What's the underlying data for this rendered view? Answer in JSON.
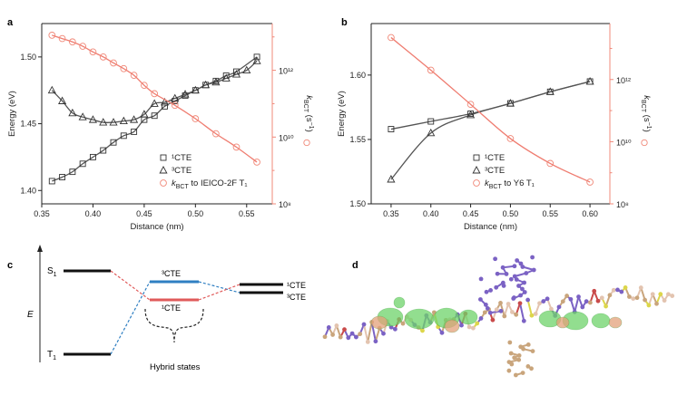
{
  "panels": {
    "a": "a",
    "b": "b",
    "c": "c",
    "d": "d"
  },
  "chart_data": [
    {
      "panel": "a",
      "type": "scatter",
      "xlabel": "Distance (nm)",
      "ylabel": "Energy (eV)",
      "ylabel_right": "k_BCT (s^-1)",
      "xlim": [
        0.35,
        0.575
      ],
      "ylim": [
        1.39,
        1.525
      ],
      "xticks": [
        "0.35",
        "0.40",
        "0.45",
        "0.50",
        "0.55"
      ],
      "yticks": [
        "1.40",
        "1.45",
        "1.50"
      ],
      "right_log_ticks": [
        "10⁸",
        "10¹⁰",
        "10¹²"
      ],
      "right_log_range": [
        8,
        13.4
      ],
      "legend_position": "bottom-right",
      "series": [
        {
          "name": "¹CTE",
          "marker": "square",
          "axis": "left",
          "color": "#333333",
          "x": [
            0.36,
            0.37,
            0.38,
            0.39,
            0.4,
            0.41,
            0.42,
            0.43,
            0.44,
            0.45,
            0.46,
            0.47,
            0.48,
            0.49,
            0.5,
            0.51,
            0.52,
            0.53,
            0.54,
            0.56
          ],
          "y": [
            1.407,
            1.41,
            1.414,
            1.42,
            1.425,
            1.43,
            1.436,
            1.441,
            1.444,
            1.453,
            1.456,
            1.463,
            1.467,
            1.471,
            1.475,
            1.479,
            1.482,
            1.486,
            1.489,
            1.5
          ]
        },
        {
          "name": "³CTE",
          "marker": "triangle",
          "axis": "left",
          "color": "#333333",
          "x": [
            0.36,
            0.37,
            0.38,
            0.39,
            0.4,
            0.41,
            0.42,
            0.43,
            0.44,
            0.45,
            0.46,
            0.47,
            0.48,
            0.49,
            0.5,
            0.51,
            0.52,
            0.53,
            0.54,
            0.55,
            0.56
          ],
          "y": [
            1.475,
            1.467,
            1.458,
            1.455,
            1.453,
            1.451,
            1.451,
            1.452,
            1.453,
            1.457,
            1.465,
            1.466,
            1.469,
            1.472,
            1.475,
            1.479,
            1.481,
            1.484,
            1.487,
            1.49,
            1.497
          ]
        },
        {
          "name": "k_BCT to IEICO-2F T₁",
          "marker": "circle",
          "axis": "right",
          "color": "#f08878",
          "x": [
            0.36,
            0.37,
            0.38,
            0.39,
            0.4,
            0.41,
            0.42,
            0.43,
            0.44,
            0.45,
            0.46,
            0.48,
            0.5,
            0.52,
            0.54,
            0.56
          ],
          "logy": [
            13.05,
            12.95,
            12.85,
            12.72,
            12.55,
            12.4,
            12.22,
            12.05,
            11.85,
            11.55,
            11.3,
            10.95,
            10.55,
            10.1,
            9.7,
            9.25
          ]
        }
      ]
    },
    {
      "panel": "b",
      "type": "scatter",
      "xlabel": "Distance (nm)",
      "ylabel": "Energy (eV)",
      "ylabel_right": "k_BCT (s^-1)",
      "xlim": [
        0.325,
        0.625
      ],
      "ylim": [
        1.5,
        1.64
      ],
      "xticks": [
        "0.35",
        "0.40",
        "0.45",
        "0.50",
        "0.55",
        "0.60"
      ],
      "yticks": [
        "1.50",
        "1.55",
        "1.60"
      ],
      "right_log_ticks": [
        "10⁸",
        "10¹⁰",
        "10¹²"
      ],
      "right_log_range": [
        8,
        13.8
      ],
      "legend_position": "bottom-right",
      "series": [
        {
          "name": "¹CTE",
          "marker": "square",
          "axis": "left",
          "color": "#333333",
          "x": [
            0.35,
            0.4,
            0.45,
            0.5,
            0.55,
            0.6
          ],
          "y": [
            1.558,
            1.564,
            1.57,
            1.578,
            1.587,
            1.595
          ]
        },
        {
          "name": "³CTE",
          "marker": "triangle",
          "axis": "left",
          "color": "#333333",
          "x": [
            0.35,
            0.4,
            0.45,
            0.5,
            0.55,
            0.6
          ],
          "y": [
            1.519,
            1.555,
            1.569,
            1.578,
            1.587,
            1.595
          ]
        },
        {
          "name": "k_BCT to Y6 T₁",
          "marker": "circle",
          "axis": "right",
          "color": "#f08878",
          "x": [
            0.35,
            0.4,
            0.45,
            0.5,
            0.55,
            0.6
          ],
          "logy": [
            13.35,
            12.3,
            11.2,
            10.1,
            9.3,
            8.7
          ]
        }
      ]
    }
  ],
  "diagram_c": {
    "axis_label": "E",
    "s1_label": "S",
    "s1_sub": "1",
    "t1_label": "T",
    "t1_sub": "1",
    "left_labels": [
      "³CTE",
      "¹CTE"
    ],
    "right_labels": [
      "¹CTE",
      "³CTE"
    ],
    "brace_label": "Hybrid states"
  },
  "panel_d": {
    "description_text": ""
  }
}
